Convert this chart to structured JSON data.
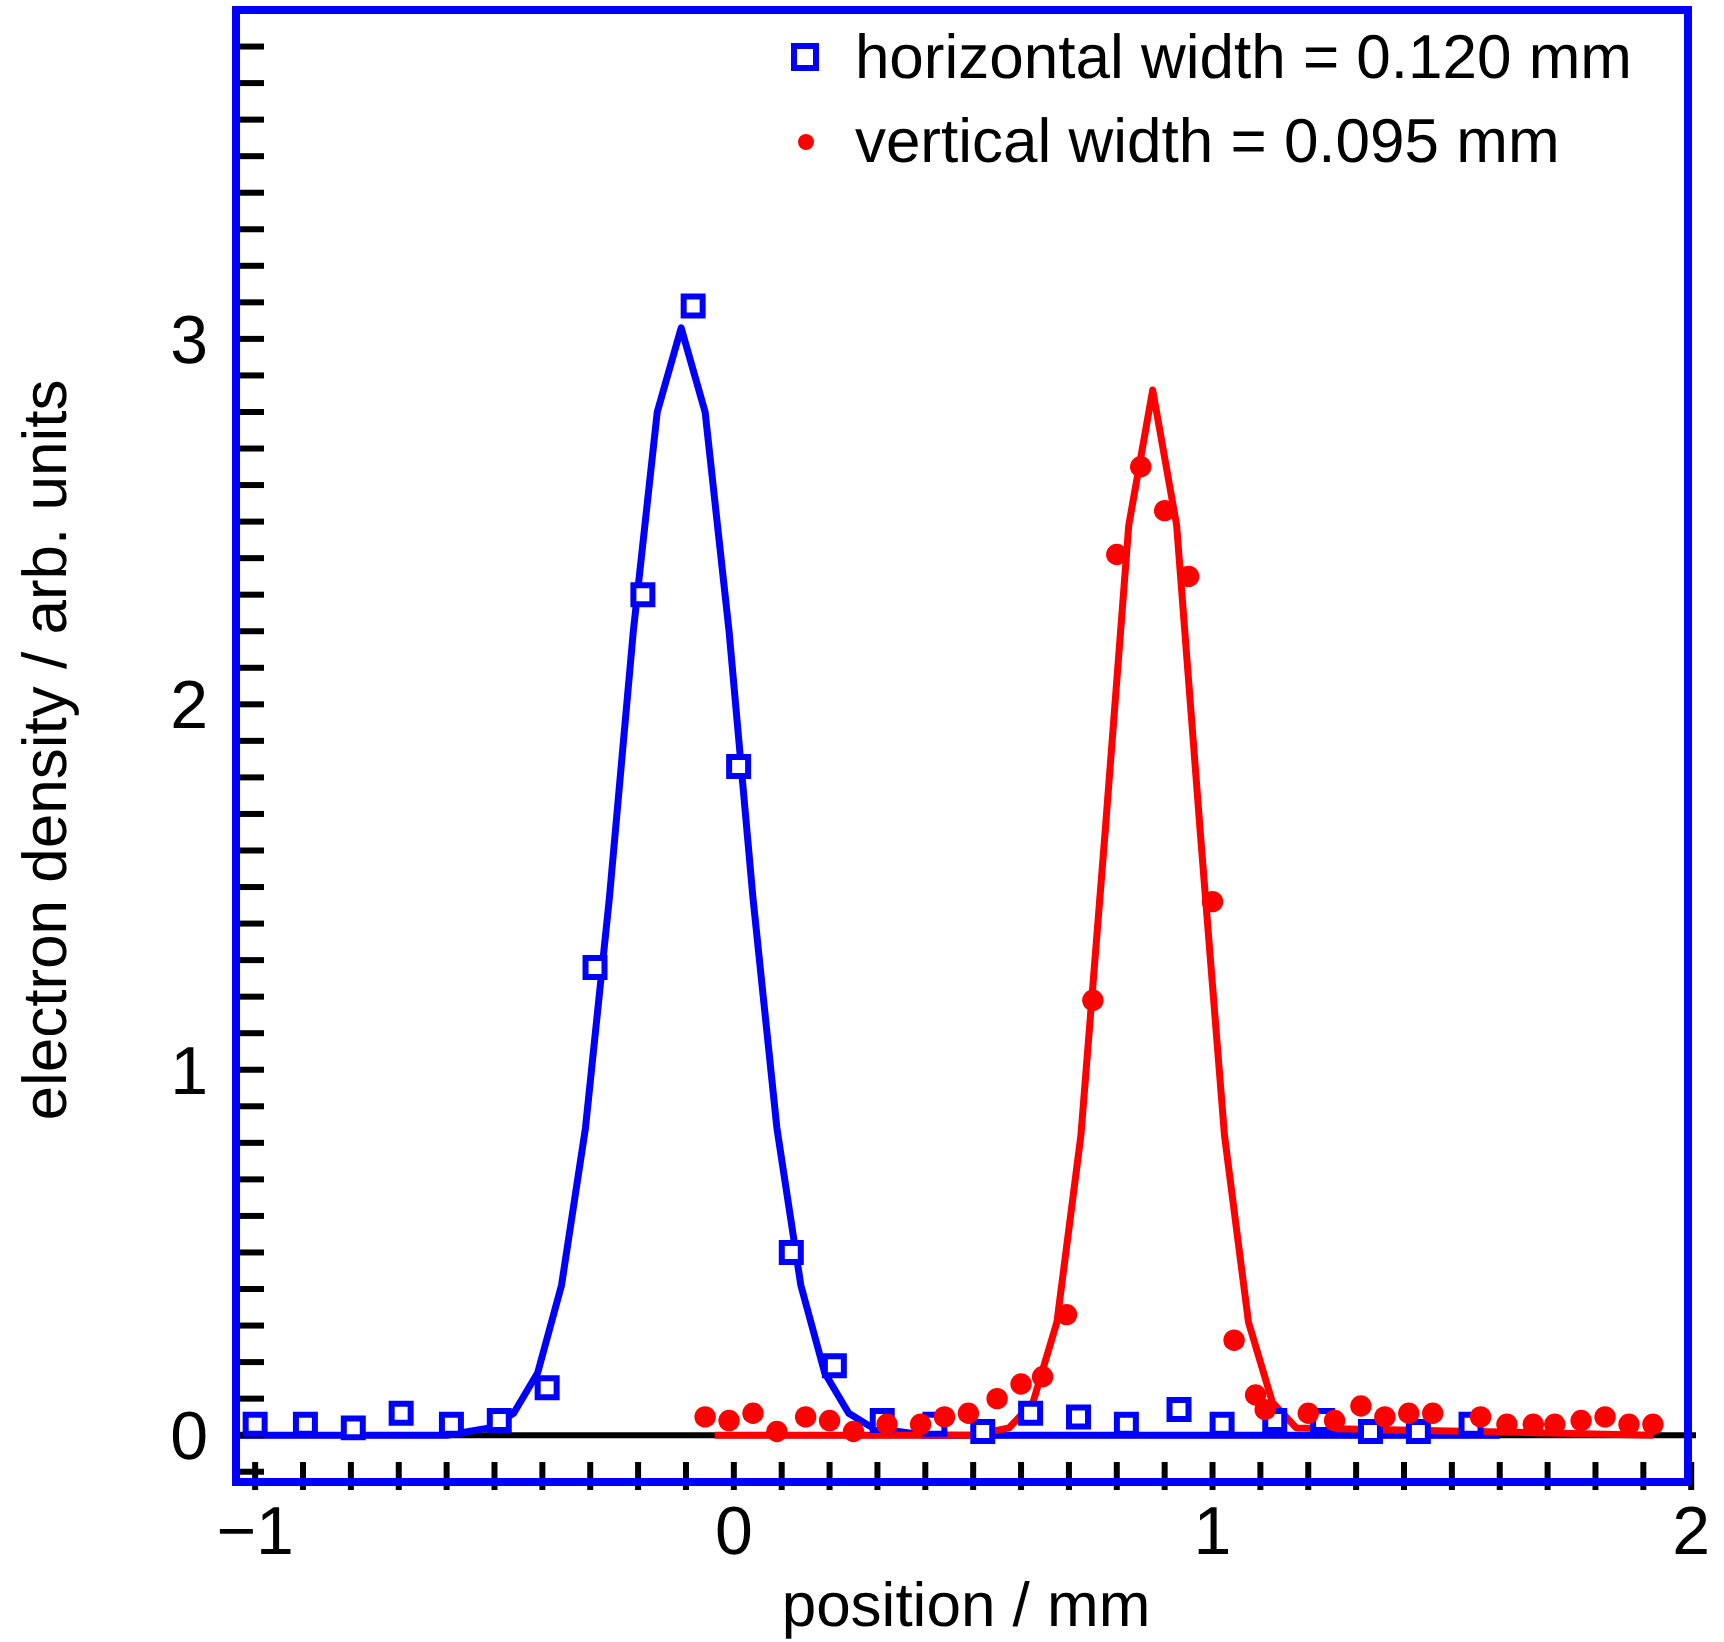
{
  "chart_data": {
    "type": "scatter",
    "xlabel": "position / mm",
    "ylabel": "electron density / arb. units",
    "xlim": [
      -1.04,
      2.01
    ],
    "ylim": [
      -0.15,
      3.9
    ],
    "xticks": [
      {
        "value": -1,
        "label": "−1"
      },
      {
        "value": -0.9,
        "label": null
      },
      {
        "value": -0.8,
        "label": null
      },
      {
        "value": -0.7,
        "label": null
      },
      {
        "value": -0.6,
        "label": null
      },
      {
        "value": -0.5,
        "label": null
      },
      {
        "value": -0.4,
        "label": null
      },
      {
        "value": -0.3,
        "label": null
      },
      {
        "value": -0.2,
        "label": null
      },
      {
        "value": -0.1,
        "label": null
      },
      0,
      {
        "value": 0.1,
        "label": null
      },
      {
        "value": 0.2,
        "label": null
      },
      {
        "value": 0.3,
        "label": null
      },
      {
        "value": 0.4,
        "label": null
      },
      {
        "value": 0.5,
        "label": null
      },
      {
        "value": 0.6,
        "label": null
      },
      {
        "value": 0.7,
        "label": null
      },
      {
        "value": 0.8,
        "label": null
      },
      {
        "value": 0.9,
        "label": null
      },
      1,
      {
        "value": 1.1,
        "label": null
      },
      {
        "value": 1.2,
        "label": null
      },
      {
        "value": 1.3,
        "label": null
      },
      {
        "value": 1.4,
        "label": null
      },
      {
        "value": 1.5,
        "label": null
      },
      {
        "value": 1.6,
        "label": null
      },
      {
        "value": 1.7,
        "label": null
      },
      {
        "value": 1.8,
        "label": null
      },
      {
        "value": 1.9,
        "label": null
      },
      2
    ],
    "yticks": [
      {
        "value": -0.1,
        "label": null
      },
      0,
      {
        "value": 0.1,
        "label": null
      },
      {
        "value": 0.2,
        "label": null
      },
      {
        "value": 0.3,
        "label": null
      },
      {
        "value": 0.4,
        "label": null
      },
      {
        "value": 0.5,
        "label": null
      },
      {
        "value": 0.6,
        "label": null
      },
      {
        "value": 0.7,
        "label": null
      },
      {
        "value": 0.8,
        "label": null
      },
      {
        "value": 0.9,
        "label": null
      },
      1,
      {
        "value": 1.1,
        "label": null
      },
      {
        "value": 1.2,
        "label": null
      },
      {
        "value": 1.3,
        "label": null
      },
      {
        "value": 1.4,
        "label": null
      },
      {
        "value": 1.5,
        "label": null
      },
      {
        "value": 1.6,
        "label": null
      },
      {
        "value": 1.7,
        "label": null
      },
      {
        "value": 1.8,
        "label": null
      },
      {
        "value": 1.9,
        "label": null
      },
      2,
      {
        "value": 2.1,
        "label": null
      },
      {
        "value": 2.2,
        "label": null
      },
      {
        "value": 2.3,
        "label": null
      },
      {
        "value": 2.4,
        "label": null
      },
      {
        "value": 2.5,
        "label": null
      },
      {
        "value": 2.6,
        "label": null
      },
      {
        "value": 2.7,
        "label": null
      },
      {
        "value": 2.8,
        "label": null
      },
      {
        "value": 2.9,
        "label": null
      },
      3,
      {
        "value": 3.1,
        "label": null
      },
      {
        "value": 3.2,
        "label": null
      },
      {
        "value": 3.3,
        "label": null
      },
      {
        "value": 3.4,
        "label": null
      },
      {
        "value": 3.5,
        "label": null
      },
      {
        "value": 3.6,
        "label": null
      },
      {
        "value": 3.7,
        "label": null
      },
      {
        "value": 3.8,
        "label": null
      }
    ],
    "grid": false,
    "legend": "top right",
    "ref_lines": [
      {
        "axis": "y",
        "value": 0,
        "color": "#000000"
      }
    ],
    "series": [
      {
        "name": "horizontal width = 0.120 mm",
        "type": "scatter",
        "marker": "square",
        "color": "#0000ff",
        "x": [
          -1.0,
          -0.895,
          -0.795,
          -0.695,
          -0.59,
          -0.49,
          -0.39,
          -0.29,
          -0.19,
          -0.085,
          0.01,
          0.12,
          0.21,
          0.31,
          0.42,
          0.52,
          0.62,
          0.72,
          0.82,
          0.93,
          1.02,
          1.13,
          1.23,
          1.33,
          1.43,
          1.54
        ],
        "values": [
          0.03,
          0.03,
          0.02,
          0.06,
          0.03,
          0.04,
          0.13,
          1.28,
          2.3,
          3.09,
          1.83,
          0.5,
          0.19,
          0.04,
          0.03,
          0.01,
          0.06,
          0.05,
          0.03,
          0.07,
          0.03,
          0.04,
          0.04,
          0.01,
          0.01,
          0.03
        ]
      },
      {
        "name": "vertical width = 0.095 mm",
        "type": "scatter",
        "marker": "circle",
        "color": "#ff0000",
        "x": [
          -0.06,
          -0.01,
          0.04,
          0.09,
          0.15,
          0.2,
          0.25,
          0.32,
          0.39,
          0.44,
          0.49,
          0.55,
          0.6,
          0.645,
          0.695,
          0.75,
          0.8,
          0.85,
          0.9,
          0.95,
          1.0,
          1.045,
          1.09,
          1.11,
          1.2,
          1.255,
          1.31,
          1.36,
          1.41,
          1.46,
          1.56,
          1.615,
          1.67,
          1.715,
          1.77,
          1.82,
          1.87,
          1.92
        ],
        "values": [
          0.05,
          0.04,
          0.06,
          0.01,
          0.05,
          0.04,
          0.01,
          0.03,
          0.03,
          0.05,
          0.06,
          0.1,
          0.14,
          0.16,
          0.33,
          1.19,
          2.41,
          2.65,
          2.53,
          2.35,
          1.46,
          0.26,
          0.11,
          0.07,
          0.06,
          0.04,
          0.08,
          0.05,
          0.06,
          0.06,
          0.05,
          0.03,
          0.03,
          0.03,
          0.04,
          0.05,
          0.03,
          0.03
        ]
      },
      {
        "type": "line",
        "marker": "none",
        "color": "#0000ff",
        "x": [
          -1.04,
          -0.6,
          -0.51,
          -0.46,
          -0.41,
          -0.36,
          -0.31,
          -0.26,
          -0.21,
          -0.16,
          -0.11,
          -0.06,
          -0.01,
          0.04,
          0.09,
          0.14,
          0.19,
          0.24,
          0.29,
          0.4,
          1.6
        ],
        "values": [
          0,
          0,
          0.02,
          0.06,
          0.17,
          0.41,
          0.84,
          1.47,
          2.2,
          2.8,
          3.03,
          2.8,
          2.2,
          1.47,
          0.84,
          0.41,
          0.17,
          0.06,
          0.02,
          0,
          0
        ]
      },
      {
        "type": "line",
        "marker": "none",
        "color": "#ff0000",
        "x": [
          -0.04,
          0.5,
          0.575,
          0.625,
          0.675,
          0.725,
          0.775,
          0.825,
          0.875,
          0.925,
          0.975,
          1.025,
          1.075,
          1.125,
          1.175,
          1.92
        ],
        "values": [
          0,
          0,
          0.02,
          0.09,
          0.31,
          0.82,
          1.64,
          2.49,
          2.86,
          2.49,
          1.64,
          0.82,
          0.31,
          0.09,
          0.02,
          0
        ]
      }
    ]
  }
}
